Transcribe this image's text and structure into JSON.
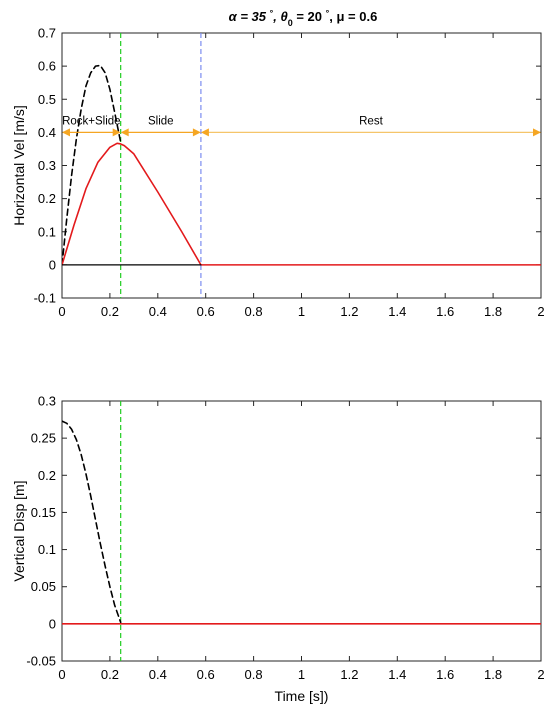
{
  "figure": {
    "title_parts": [
      "α =  35 ",
      "°",
      ", θ",
      "0",
      " =  20 ",
      "°",
      ", μ = 0.6"
    ]
  },
  "colors": {
    "red_curve": "#e31a1c",
    "black_dashed": "#000000",
    "green_dashed": "#22cc22",
    "blue_dashed": "#7b8cf0",
    "orange_arrow": "#f5a623",
    "rest_arrow": "#f5c56a",
    "zero_line": "#000000"
  },
  "chart_data": [
    {
      "type": "line",
      "xlabel": "",
      "ylabel": "Horizontal Vel [m/s]",
      "xlim": [
        0,
        2
      ],
      "ylim": [
        -0.1,
        0.7
      ],
      "xticks": [
        "0",
        "0.2",
        "0.4",
        "0.6",
        "0.8",
        "1",
        "1.2",
        "1.4",
        "1.6",
        "1.8",
        "2"
      ],
      "yticks": [
        "-0.1",
        "0",
        "0.1",
        "0.2",
        "0.3",
        "0.4",
        "0.5",
        "0.6",
        "0.7"
      ],
      "series": [
        {
          "style": "dashed-black",
          "x": [
            0,
            0.02,
            0.04,
            0.06,
            0.08,
            0.1,
            0.12,
            0.14,
            0.16,
            0.18,
            0.2,
            0.22,
            0.245
          ],
          "y": [
            0,
            0.14,
            0.27,
            0.38,
            0.47,
            0.54,
            0.58,
            0.6,
            0.602,
            0.58,
            0.53,
            0.46,
            0.37
          ]
        },
        {
          "style": "solid-red",
          "x": [
            0,
            0.05,
            0.1,
            0.15,
            0.2,
            0.23,
            0.245,
            0.26,
            0.3,
            0.4,
            0.5,
            0.58,
            0.6,
            0.8,
            1,
            1.2,
            1.4,
            1.6,
            1.8,
            2
          ],
          "y": [
            0,
            0.12,
            0.23,
            0.31,
            0.355,
            0.367,
            0.365,
            0.36,
            0.335,
            0.22,
            0.1,
            0,
            0,
            0,
            0,
            0,
            0,
            0,
            0,
            0
          ]
        },
        {
          "style": "solid-black",
          "x": [
            0,
            0.58
          ],
          "y": [
            0,
            0
          ]
        }
      ],
      "vlines": [
        {
          "x": 0.245,
          "style": "dashed-green"
        },
        {
          "x": 0.58,
          "style": "dashed-blue"
        }
      ],
      "annotations": [
        {
          "label": "Rock+Slide",
          "x_start": 0,
          "x_end": 0.245,
          "y": 0.4
        },
        {
          "label": "Slide",
          "x_start": 0.245,
          "x_end": 0.58,
          "y": 0.4
        },
        {
          "label": "Rest",
          "x_start": 0.58,
          "x_end": 2,
          "y": 0.4
        }
      ]
    },
    {
      "type": "line",
      "xlabel": "Time [s])",
      "ylabel": "Vertical Disp [m]",
      "xlim": [
        0,
        2
      ],
      "ylim": [
        -0.05,
        0.3
      ],
      "xticks": [
        "0",
        "0.2",
        "0.4",
        "0.6",
        "0.8",
        "1",
        "1.2",
        "1.4",
        "1.6",
        "1.8",
        "2"
      ],
      "yticks": [
        "-0.05",
        "0",
        "0.05",
        "0.1",
        "0.15",
        "0.2",
        "0.25",
        "0.3"
      ],
      "series": [
        {
          "style": "dashed-black",
          "x": [
            0,
            0.02,
            0.04,
            0.06,
            0.08,
            0.1,
            0.12,
            0.14,
            0.16,
            0.18,
            0.2,
            0.22,
            0.245
          ],
          "y": [
            0.273,
            0.27,
            0.262,
            0.248,
            0.228,
            0.202,
            0.172,
            0.14,
            0.108,
            0.078,
            0.05,
            0.025,
            0.002
          ]
        },
        {
          "style": "solid-red",
          "x": [
            0,
            2
          ],
          "y": [
            0,
            0
          ]
        }
      ],
      "vlines": [
        {
          "x": 0.245,
          "style": "dashed-green"
        }
      ],
      "annotations": []
    }
  ]
}
